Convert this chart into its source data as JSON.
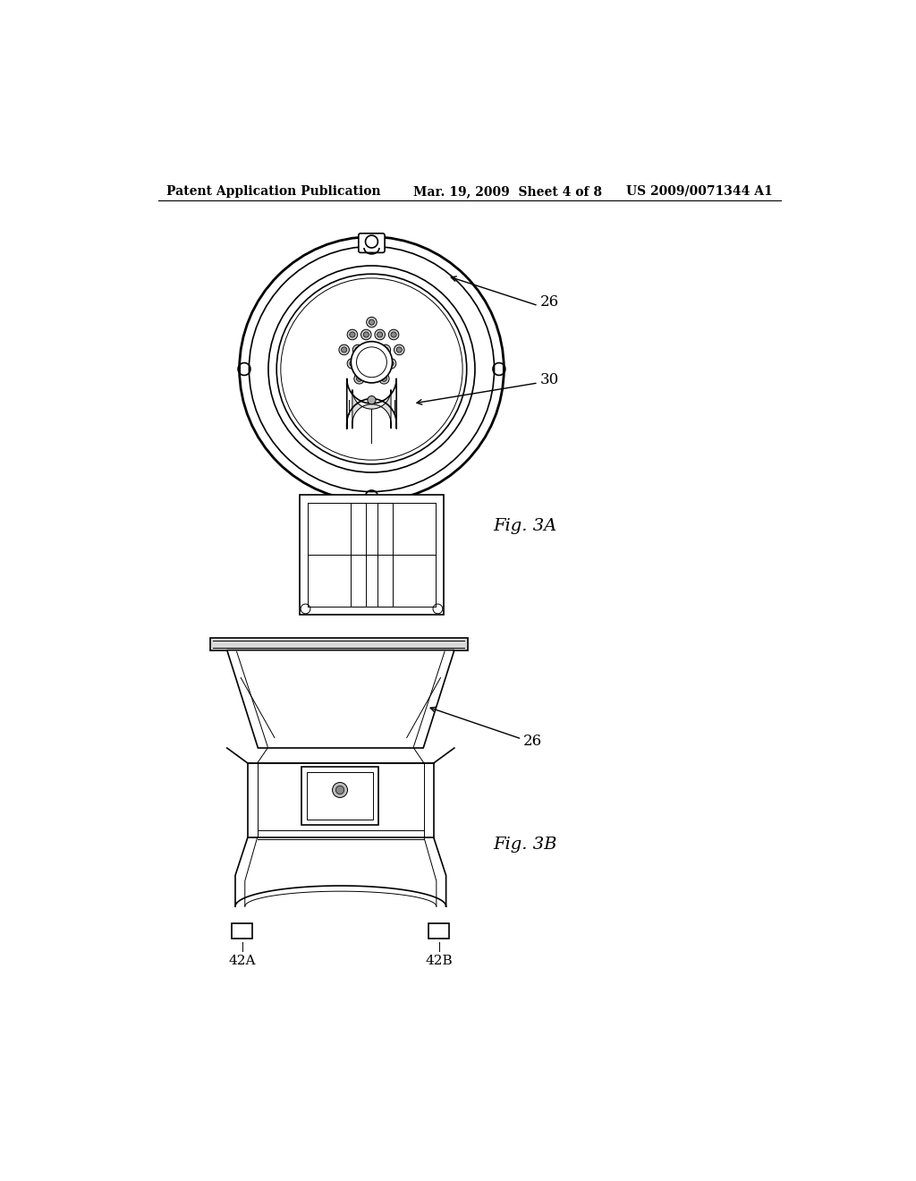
{
  "background_color": "#ffffff",
  "header_left": "Patent Application Publication",
  "header_center": "Mar. 19, 2009  Sheet 4 of 8",
  "header_right": "US 2009/0071344 A1",
  "fig3a_label": "Fig. 3A",
  "fig3b_label": "Fig. 3B"
}
